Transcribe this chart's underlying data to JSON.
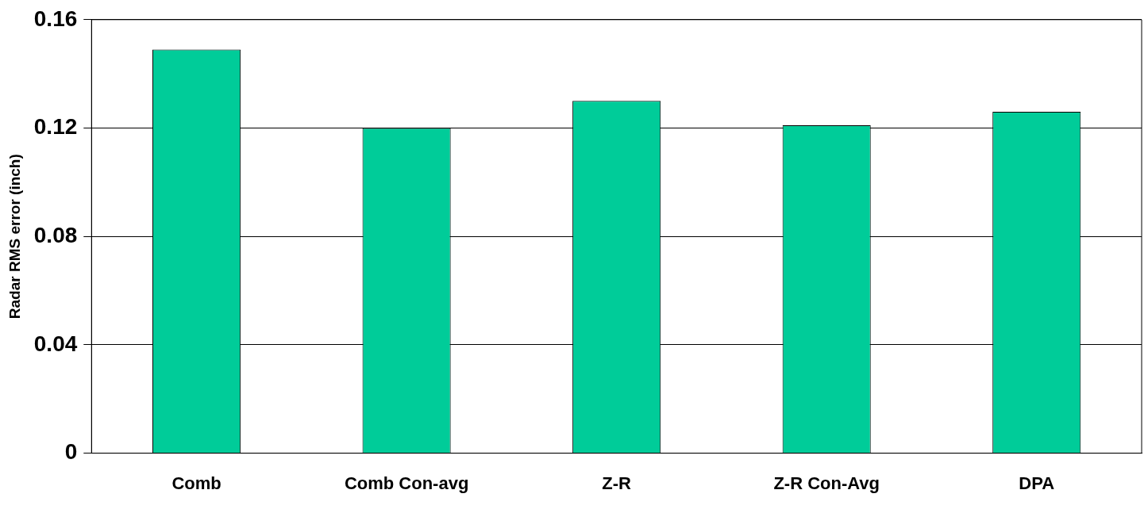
{
  "chart_data": {
    "type": "bar",
    "ylabel": "Radar RMS error (inch)",
    "categories": [
      "Comb",
      "Comb Con-avg",
      "Z-R",
      "Z-R Con-Avg",
      "DPA"
    ],
    "values": [
      0.149,
      0.12,
      0.13,
      0.121,
      0.126
    ],
    "color": "#00cc99",
    "ylim": [
      0,
      0.16
    ],
    "yticks": [
      0,
      0.04,
      0.08,
      0.12,
      0.16
    ],
    "grid": "y",
    "legend": false
  }
}
